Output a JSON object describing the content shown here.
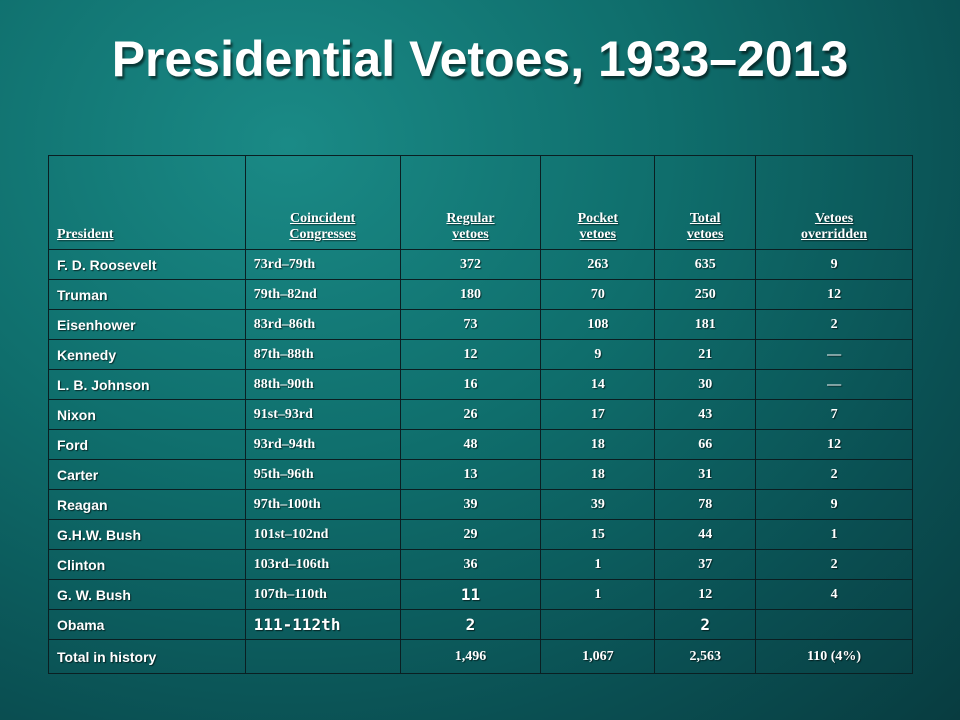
{
  "title": "Presidential Vetoes, 1933–2013",
  "table": {
    "headers": [
      "President",
      "Coincident\nCongresses",
      "Regular\nvetoes",
      "Pocket\nvetoes",
      "Total\nvetoes",
      "Vetoes\noverridden"
    ],
    "rows": [
      [
        "F. D. Roosevelt",
        "73rd–79th",
        "372",
        "263",
        "635",
        "9"
      ],
      [
        "Truman",
        "79th–82nd",
        "180",
        "70",
        "250",
        "12"
      ],
      [
        "Eisenhower",
        "83rd–86th",
        "73",
        "108",
        "181",
        "2"
      ],
      [
        "Kennedy",
        "87th–88th",
        "12",
        "9",
        "21",
        "—"
      ],
      [
        "L. B. Johnson",
        "88th–90th",
        "16",
        "14",
        "30",
        "—"
      ],
      [
        "Nixon",
        "91st–93rd",
        "26",
        "17",
        "43",
        "7"
      ],
      [
        "Ford",
        "93rd–94th",
        "48",
        "18",
        "66",
        "12"
      ],
      [
        "Carter",
        "95th–96th",
        "13",
        "18",
        "31",
        "2"
      ],
      [
        "Reagan",
        "97th–100th",
        "39",
        "39",
        "78",
        "9"
      ],
      [
        "G.H.W. Bush",
        "101st–102nd",
        "29",
        "15",
        "44",
        "1"
      ],
      [
        "Clinton",
        "103rd–106th",
        "36",
        "1",
        "37",
        "2"
      ],
      [
        "G. W. Bush",
        "107th–110th",
        "11",
        "1",
        "12",
        "4"
      ],
      [
        "Obama",
        "111-112th",
        "2",
        "",
        "2",
        ""
      ]
    ],
    "total": [
      "Total in history",
      "",
      "1,496",
      "1,067",
      "2,563",
      "110 (4%)"
    ]
  }
}
